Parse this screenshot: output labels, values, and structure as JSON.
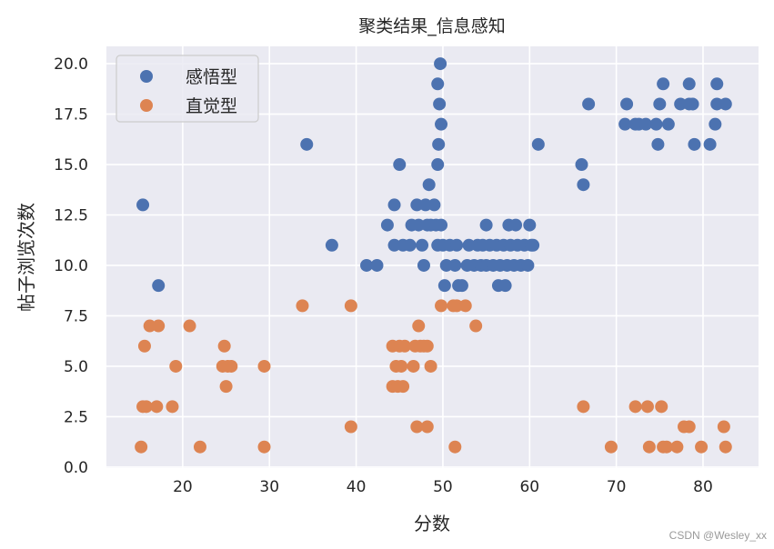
{
  "chart_data": {
    "type": "scatter",
    "title": "聚类结果_信息感知",
    "xlabel": "分数",
    "ylabel": "帖子浏览次数",
    "xlim": [
      11.2,
      86.4
    ],
    "ylim": [
      -0.05,
      20.86
    ],
    "xticks": [
      20,
      30,
      40,
      50,
      60,
      70,
      80
    ],
    "xtick_labels": [
      "20",
      "30",
      "40",
      "50",
      "60",
      "70",
      "80"
    ],
    "yticks": [
      0,
      2.5,
      5,
      7.5,
      10,
      12.5,
      15,
      17.5,
      20
    ],
    "ytick_labels": [
      "0.0",
      "2.5",
      "5.0",
      "7.5",
      "10.0",
      "12.5",
      "15.0",
      "17.5",
      "20.0"
    ],
    "grid": true,
    "legend_position": "upper left",
    "background": "#eaeaf2",
    "series": [
      {
        "name": "感悟型",
        "color": "#4c72b0",
        "points": [
          [
            15.4,
            13
          ],
          [
            17.2,
            9
          ],
          [
            34.3,
            16
          ],
          [
            37.2,
            11
          ],
          [
            41.2,
            10
          ],
          [
            42.4,
            10
          ],
          [
            43.6,
            12
          ],
          [
            44.4,
            13
          ],
          [
            44.4,
            11
          ],
          [
            45,
            15
          ],
          [
            45.4,
            11
          ],
          [
            46.2,
            11
          ],
          [
            46.4,
            12
          ],
          [
            47,
            13
          ],
          [
            47.2,
            12
          ],
          [
            47.6,
            11
          ],
          [
            48,
            13
          ],
          [
            47.8,
            10
          ],
          [
            48.2,
            12
          ],
          [
            48.6,
            12
          ],
          [
            48.4,
            14
          ],
          [
            49,
            13
          ],
          [
            49.2,
            12
          ],
          [
            49.4,
            15
          ],
          [
            49.4,
            19
          ],
          [
            49.5,
            16
          ],
          [
            49.6,
            18
          ],
          [
            49.7,
            20
          ],
          [
            49.8,
            17
          ],
          [
            49.4,
            11
          ],
          [
            49.8,
            12
          ],
          [
            50,
            11
          ],
          [
            50.2,
            9
          ],
          [
            50.4,
            10
          ],
          [
            50.8,
            11
          ],
          [
            51.4,
            10
          ],
          [
            51.8,
            9
          ],
          [
            51.6,
            11
          ],
          [
            52.2,
            9
          ],
          [
            52.8,
            10
          ],
          [
            53,
            11
          ],
          [
            53.6,
            10
          ],
          [
            54,
            11
          ],
          [
            54.4,
            10
          ],
          [
            54.6,
            11
          ],
          [
            55,
            12
          ],
          [
            55,
            10
          ],
          [
            55.4,
            11
          ],
          [
            55.8,
            10
          ],
          [
            56.2,
            11
          ],
          [
            56.4,
            9
          ],
          [
            56.6,
            10
          ],
          [
            57,
            11
          ],
          [
            57.2,
            9
          ],
          [
            57.4,
            10
          ],
          [
            57.6,
            12
          ],
          [
            57.8,
            11
          ],
          [
            58.2,
            10
          ],
          [
            58.4,
            12
          ],
          [
            58.6,
            11
          ],
          [
            59,
            10
          ],
          [
            59.4,
            11
          ],
          [
            59.8,
            10
          ],
          [
            60,
            12
          ],
          [
            60.2,
            11
          ],
          [
            60.4,
            11
          ],
          [
            61,
            16
          ],
          [
            66,
            15
          ],
          [
            66.2,
            14
          ],
          [
            66.8,
            18
          ],
          [
            71,
            17
          ],
          [
            71.2,
            18
          ],
          [
            72.2,
            17
          ],
          [
            72.6,
            17
          ],
          [
            73.4,
            17
          ],
          [
            74.6,
            17
          ],
          [
            74.8,
            16
          ],
          [
            75,
            18
          ],
          [
            75.4,
            19
          ],
          [
            76,
            17
          ],
          [
            77.4,
            18
          ],
          [
            78.4,
            18
          ],
          [
            78.4,
            19
          ],
          [
            78.8,
            18
          ],
          [
            79,
            16
          ],
          [
            80.8,
            16
          ],
          [
            81.4,
            17
          ],
          [
            81.6,
            18
          ],
          [
            81.6,
            19
          ],
          [
            82.6,
            18
          ]
        ]
      },
      {
        "name": "直觉型",
        "color": "#dd8452",
        "points": [
          [
            15.2,
            1
          ],
          [
            15.4,
            3
          ],
          [
            15.6,
            6
          ],
          [
            15.8,
            3
          ],
          [
            16.2,
            7
          ],
          [
            17,
            3
          ],
          [
            17.2,
            7
          ],
          [
            18.8,
            3
          ],
          [
            19.2,
            5
          ],
          [
            20.8,
            7
          ],
          [
            22,
            1
          ],
          [
            24.6,
            5
          ],
          [
            24.8,
            6
          ],
          [
            25,
            4
          ],
          [
            25.2,
            5
          ],
          [
            25.6,
            5
          ],
          [
            29.4,
            5
          ],
          [
            29.4,
            1
          ],
          [
            33.8,
            8
          ],
          [
            39.4,
            8
          ],
          [
            39.4,
            2
          ],
          [
            44.2,
            6
          ],
          [
            44.2,
            4
          ],
          [
            44.6,
            5
          ],
          [
            44.8,
            4
          ],
          [
            45,
            6
          ],
          [
            45.2,
            5
          ],
          [
            45.4,
            4
          ],
          [
            45.6,
            6
          ],
          [
            46.6,
            5
          ],
          [
            46.8,
            6
          ],
          [
            47,
            2
          ],
          [
            47.2,
            7
          ],
          [
            47.4,
            6
          ],
          [
            47.8,
            6
          ],
          [
            48.2,
            2
          ],
          [
            48.2,
            6
          ],
          [
            48.6,
            5
          ],
          [
            49.8,
            8
          ],
          [
            51.2,
            8
          ],
          [
            51.4,
            1
          ],
          [
            51.6,
            8
          ],
          [
            52.6,
            8
          ],
          [
            53.8,
            7
          ],
          [
            66.2,
            3
          ],
          [
            69.4,
            1
          ],
          [
            72.2,
            3
          ],
          [
            73.6,
            3
          ],
          [
            73.8,
            1
          ],
          [
            75.2,
            3
          ],
          [
            75.4,
            1
          ],
          [
            75.8,
            1
          ],
          [
            77,
            1
          ],
          [
            77.8,
            2
          ],
          [
            78.4,
            2
          ],
          [
            79.8,
            1
          ],
          [
            82.4,
            2
          ],
          [
            82.6,
            1
          ]
        ]
      }
    ]
  },
  "watermark": "CSDN @Wesley_xx"
}
